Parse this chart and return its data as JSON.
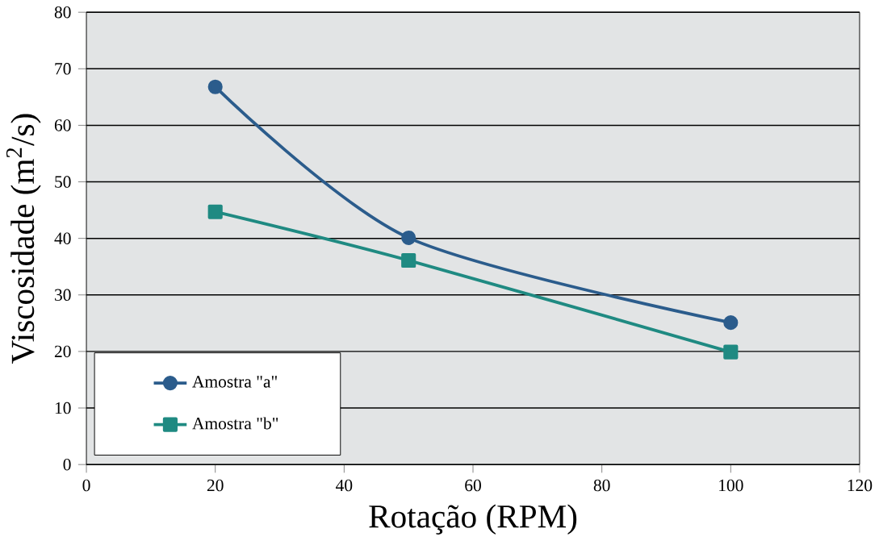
{
  "chart_data": {
    "type": "line",
    "xlabel": "Rotação (RPM)",
    "ylabel": "Viscosidade (m$^{2}$/s)",
    "x": [
      20,
      50,
      100
    ],
    "series": [
      {
        "name": "Amostra \"a\"",
        "color": "#2b5c8c",
        "values": [
          66.8,
          40.1,
          25.1
        ],
        "marker": "circle"
      },
      {
        "name": "Amostra \"b\"",
        "color": "#1f8a82",
        "values": [
          44.7,
          36.1,
          19.9
        ],
        "marker": "square"
      }
    ],
    "xlim": [
      0,
      120
    ],
    "xticks": [
      0,
      20,
      40,
      60,
      80,
      100,
      120
    ],
    "ylim": [
      0,
      80
    ],
    "yticks": [
      0,
      10,
      20,
      30,
      40,
      50,
      60,
      70,
      80
    ],
    "grid": "y",
    "legend": "bottom left",
    "line_style": "solid"
  }
}
